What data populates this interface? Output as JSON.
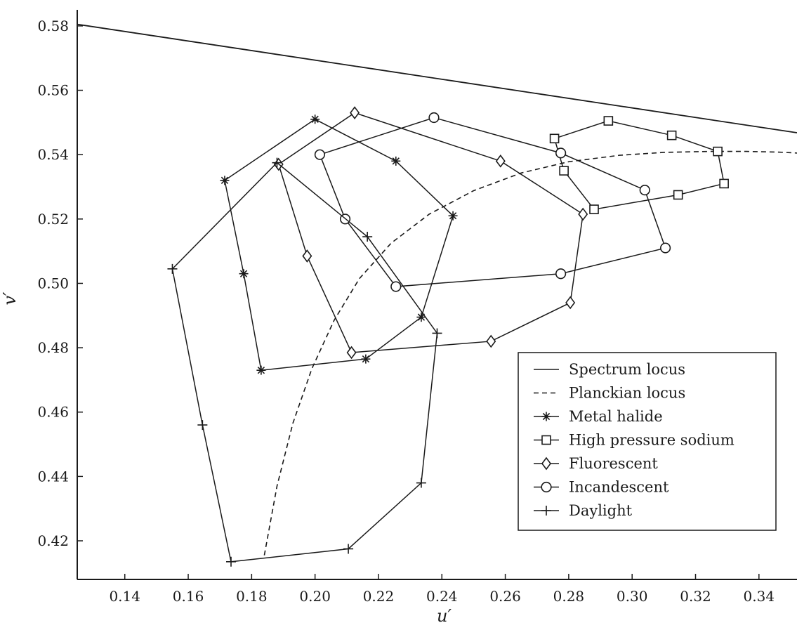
{
  "chart_data": {
    "type": "scatter",
    "title": "",
    "xlabel": "u′",
    "ylabel": "v′",
    "xlim": [
      0.125,
      0.352
    ],
    "ylim": [
      0.408,
      0.585
    ],
    "xticks": [
      0.14,
      0.16,
      0.18,
      0.2,
      0.22,
      0.24,
      0.26,
      0.28,
      0.3,
      0.32,
      0.34
    ],
    "xtick_labels": [
      "0.14",
      "0.16",
      "0.18",
      "0.20",
      "0.22",
      "0.24",
      "0.26",
      "0.28",
      "0.30",
      "0.32",
      "0.34"
    ],
    "yticks": [
      0.42,
      0.44,
      0.46,
      0.48,
      0.5,
      0.52,
      0.54,
      0.56,
      0.58
    ],
    "ytick_labels": [
      "0.42",
      "0.44",
      "0.46",
      "0.48",
      "0.50",
      "0.52",
      "0.54",
      "0.56",
      "0.58"
    ],
    "grid": false,
    "legend_position": "bottom-right",
    "series": [
      {
        "name": "Spectrum locus",
        "line": "solid",
        "marker": "none",
        "x": [
          0.125,
          0.352
        ],
        "y": [
          0.5805,
          0.5468
        ]
      },
      {
        "name": "Planckian locus",
        "line": "dashed",
        "marker": "none",
        "x": [
          0.184,
          0.188,
          0.193,
          0.199,
          0.206,
          0.214,
          0.224,
          0.236,
          0.25,
          0.265,
          0.28,
          0.296,
          0.31,
          0.324,
          0.336,
          0.346,
          0.352
        ],
        "y": [
          0.4155,
          0.437,
          0.4565,
          0.4735,
          0.4885,
          0.5015,
          0.5125,
          0.5215,
          0.5288,
          0.5343,
          0.5378,
          0.5398,
          0.5407,
          0.541,
          0.541,
          0.5408,
          0.5405
        ]
      },
      {
        "name": "Metal halide",
        "line": "solid",
        "marker": "asterisk",
        "x": [
          0.1715,
          0.2,
          0.2255,
          0.2435,
          0.2335,
          0.216,
          0.183,
          0.1775,
          0.1715
        ],
        "y": [
          0.532,
          0.551,
          0.538,
          0.521,
          0.4895,
          0.4765,
          0.473,
          0.503,
          0.532
        ]
      },
      {
        "name": "High pressure sodium",
        "line": "solid",
        "marker": "square",
        "x": [
          0.2755,
          0.2925,
          0.3125,
          0.327,
          0.329,
          0.3145,
          0.288,
          0.2785,
          0.2755
        ],
        "y": [
          0.545,
          0.5505,
          0.546,
          0.541,
          0.531,
          0.5275,
          0.523,
          0.535,
          0.545
        ]
      },
      {
        "name": "Fluorescent",
        "line": "solid",
        "marker": "diamond",
        "x": [
          0.1885,
          0.2125,
          0.2585,
          0.2845,
          0.2805,
          0.2555,
          0.2115,
          0.1975,
          0.1885
        ],
        "y": [
          0.537,
          0.553,
          0.538,
          0.5215,
          0.494,
          0.482,
          0.4785,
          0.5085,
          0.537
        ]
      },
      {
        "name": "Incandescent",
        "line": "solid",
        "marker": "circle",
        "x": [
          0.2015,
          0.2375,
          0.2775,
          0.304,
          0.3105,
          0.2775,
          0.2255,
          0.2095,
          0.2015
        ],
        "y": [
          0.54,
          0.5515,
          0.5405,
          0.529,
          0.511,
          0.503,
          0.499,
          0.52,
          0.54
        ]
      },
      {
        "name": "Daylight",
        "line": "solid",
        "marker": "plus",
        "x": [
          0.155,
          0.188,
          0.2165,
          0.2385,
          0.2335,
          0.2105,
          0.1735,
          0.1645,
          0.155
        ],
        "y": [
          0.5045,
          0.5375,
          0.5145,
          0.4845,
          0.438,
          0.4175,
          0.4135,
          0.456,
          0.5045
        ]
      }
    ]
  }
}
